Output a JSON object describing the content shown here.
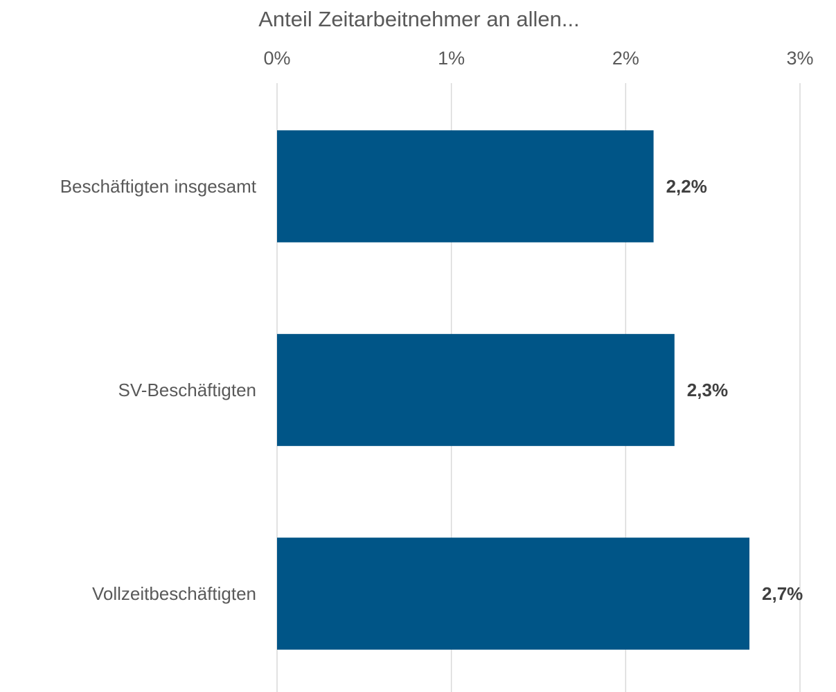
{
  "chart_data": {
    "type": "bar",
    "orientation": "horizontal",
    "title": "Anteil Zeitarbeitnehmer an allen...",
    "categories": [
      "Beschäftigten insgesamt",
      "SV-Beschäftigten",
      "Vollzeitbeschäftigten"
    ],
    "values": [
      2.16,
      2.28,
      2.71
    ],
    "value_labels": [
      "2,2%",
      "2,3%",
      "2,7%"
    ],
    "color": "#005587",
    "xlim": [
      0,
      3
    ],
    "xticks": [
      {
        "value": 0,
        "label": "0%"
      },
      {
        "value": 1,
        "label": "1%"
      },
      {
        "value": 2,
        "label": "2%"
      },
      {
        "value": 3,
        "label": "3%"
      }
    ],
    "grid": true
  }
}
